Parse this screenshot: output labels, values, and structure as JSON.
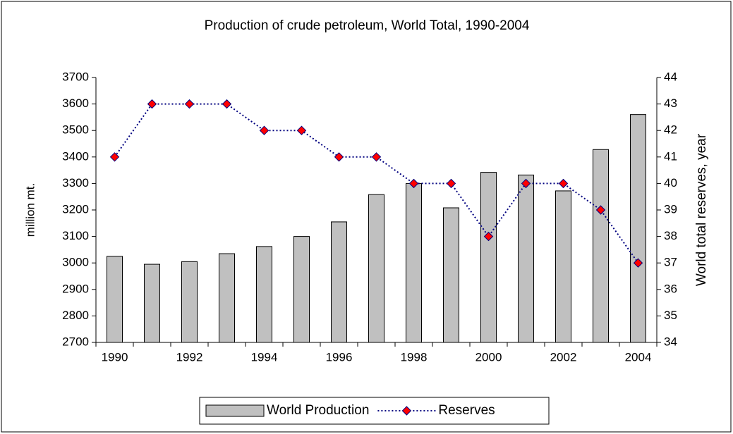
{
  "chart_data": {
    "type": "bar",
    "title": "Production of crude petroleum, World Total, 1990-2004",
    "categories": [
      "1990",
      null,
      "1992",
      null,
      "1994",
      null,
      "1996",
      null,
      "1998",
      null,
      "2000",
      null,
      "2002",
      null,
      "2004"
    ],
    "series": [
      {
        "name": "World Production",
        "type": "bar",
        "color": "#c0c0c0",
        "values": [
          3025,
          2995,
          3005,
          3035,
          3062,
          3100,
          3155,
          3258,
          3300,
          3208,
          3342,
          3332,
          3272,
          3428,
          3560
        ]
      },
      {
        "name": "Reserves",
        "type": "line",
        "axis": "y2",
        "color": "#000080",
        "marker_color": "#ff0000",
        "values": [
          41,
          43,
          43,
          43,
          42,
          42,
          41,
          41,
          40,
          40,
          38,
          40,
          40,
          39,
          37
        ]
      }
    ],
    "ylabel": "million mt.",
    "y2label": "World total reserves, year",
    "ylim": [
      2700,
      3700
    ],
    "yticks": [
      2700,
      2800,
      2900,
      3000,
      3100,
      3200,
      3300,
      3400,
      3500,
      3600,
      3700
    ],
    "y2lim": [
      34,
      44
    ],
    "y2ticks": [
      34,
      35,
      36,
      37,
      38,
      39,
      40,
      41,
      42,
      43,
      44
    ],
    "legend": "bottom"
  }
}
